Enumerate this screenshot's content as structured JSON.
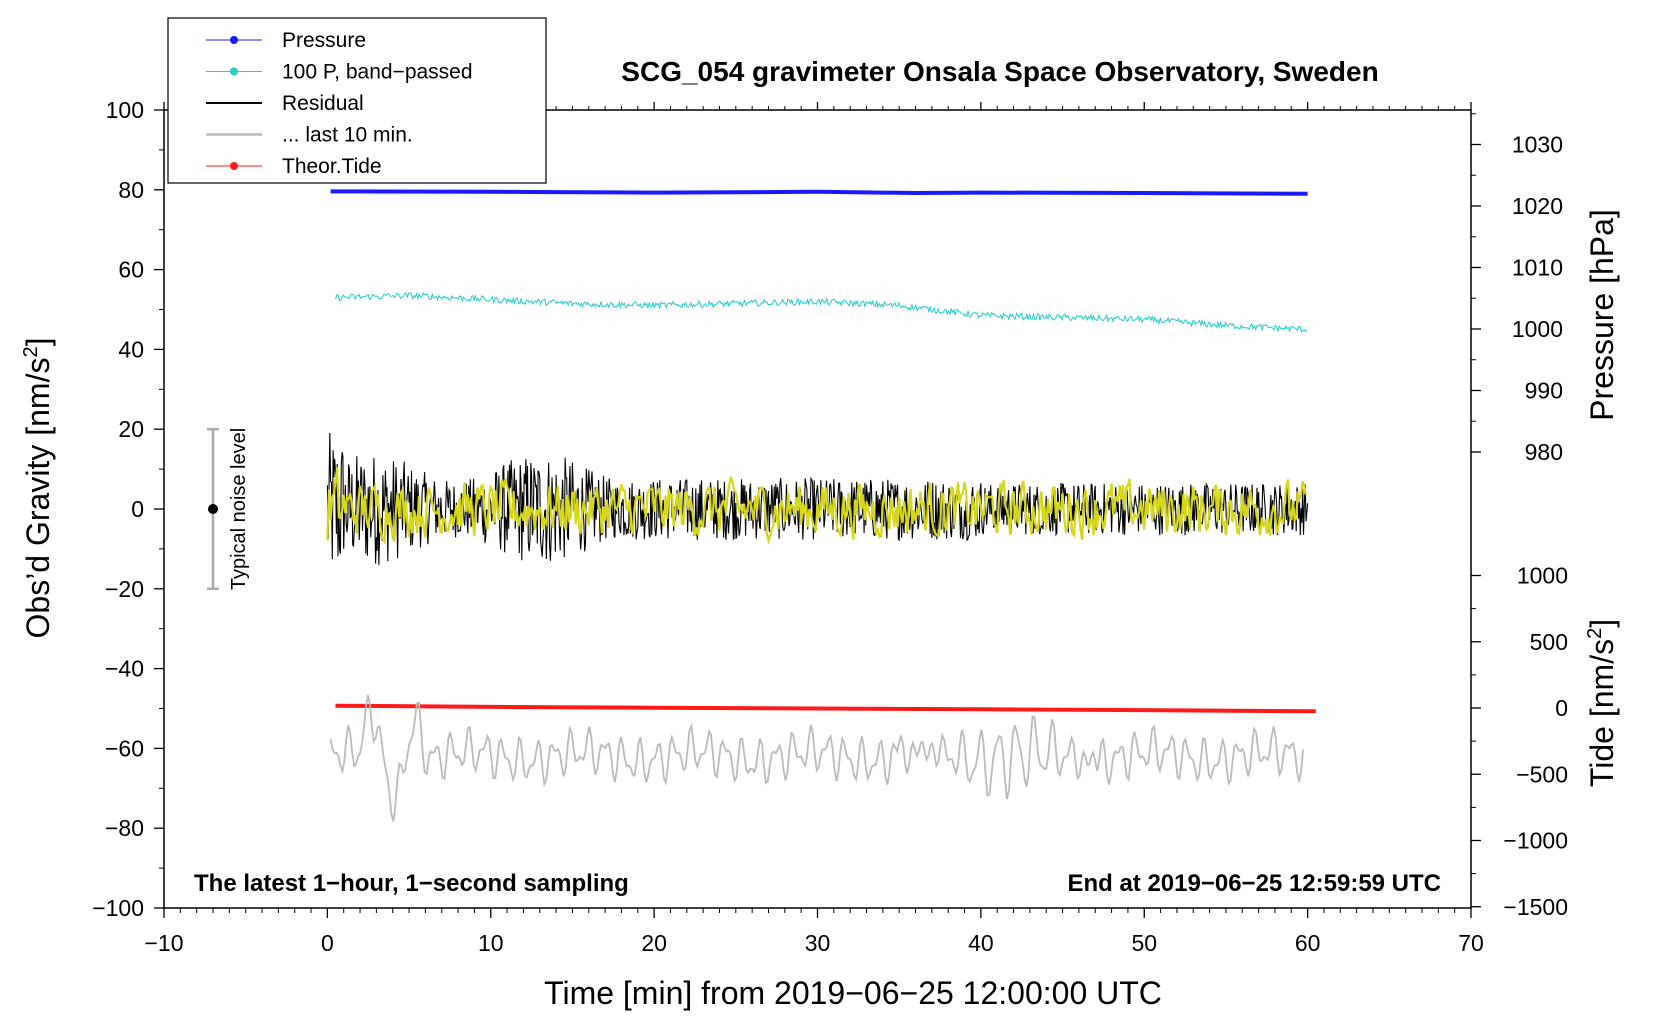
{
  "chart_data": {
    "type": "line",
    "title": "SCG_054 gravimeter Onsala Space Observatory, Sweden",
    "xlabel": "Time [min] from 2019−06−25 12:00:00 UTC",
    "ylabel_left": "Obs’d Gravity [nm/s",
    "ylabel_left_sup": "2",
    "ylabel_left_close": "]",
    "ylabel_right_pressure": "Pressure [hPa]",
    "ylabel_right_tide": "Tide [nm/s",
    "ylabel_right_tide_sup": "2",
    "ylabel_right_tide_close": "]",
    "xlim": [
      -10,
      70
    ],
    "ylim_left": [
      -100,
      100
    ],
    "x_ticks": [
      "−10",
      "0",
      "10",
      "20",
      "30",
      "40",
      "50",
      "60",
      "70"
    ],
    "x_tick_values": [
      -10,
      0,
      10,
      20,
      30,
      40,
      50,
      60,
      70
    ],
    "y_ticks_left": [
      "100",
      "80",
      "60",
      "40",
      "20",
      "0",
      "−20",
      "−40",
      "−60",
      "−80",
      "−100"
    ],
    "y_tick_values_left": [
      100,
      80,
      60,
      40,
      20,
      0,
      -20,
      -40,
      -60,
      -80,
      -100
    ],
    "pressure_ticks": [
      "1030",
      "1020",
      "1010",
      "1000",
      "990",
      "980"
    ],
    "pressure_tick_values": [
      1030,
      1020,
      1010,
      1000,
      990,
      980
    ],
    "tide_ticks": [
      "1000",
      "500",
      "0",
      "−500",
      "−1000",
      "−1500"
    ],
    "tide_tick_values": [
      1000,
      500,
      0,
      -500,
      -1000,
      -1500
    ],
    "legend": [
      {
        "label": "Pressure",
        "color": "#1a1aff",
        "marker": true
      },
      {
        "label": "100 P, band−passed",
        "color": "#22cccc",
        "marker": true
      },
      {
        "label": "Residual",
        "color": "#000000",
        "marker": false
      },
      {
        "label": "... last 10 min.",
        "color": "#bbbbbb",
        "marker": false
      },
      {
        "label": "Theor.Tide",
        "color": "#ff1a1a",
        "marker": true
      }
    ],
    "series": [
      {
        "name": "Pressure",
        "color": "#1a1aff",
        "x": [
          0.2,
          10,
          20,
          30,
          36,
          40,
          50,
          60
        ],
        "y": [
          79.6,
          79.5,
          79.3,
          79.5,
          79.2,
          79.3,
          79.2,
          79.0
        ]
      },
      {
        "name": "100 P, band-passed",
        "color": "#22cccc",
        "x": [
          0.5,
          5,
          10,
          15,
          20,
          25,
          30,
          35,
          40,
          45,
          50,
          55,
          60
        ],
        "y": [
          53,
          53.5,
          52.5,
          51.5,
          51,
          51.5,
          52,
          51,
          48.5,
          48,
          47.5,
          46,
          45
        ]
      },
      {
        "name": "Theor.Tide",
        "color": "#ff1a1a",
        "x": [
          0.5,
          10,
          20,
          30,
          40,
          50,
          60.5
        ],
        "y": [
          -49.3,
          -49.6,
          -49.8,
          -50.0,
          -50.2,
          -50.4,
          -50.7
        ]
      }
    ],
    "noise_bar": {
      "x": -7,
      "center": 0,
      "half_range": 20,
      "label": "Typical noise level"
    },
    "note_left": "The latest 1−hour, 1−second sampling",
    "note_right": "End at 2019−06−25 12:59:59 UTC"
  }
}
